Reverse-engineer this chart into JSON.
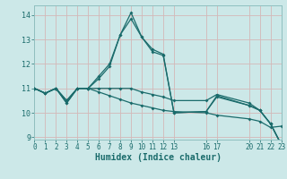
{
  "xlabel": "Humidex (Indice chaleur)",
  "bg_color": "#cce8e8",
  "grid_color": "#d4b8b8",
  "line_color": "#1a6b6b",
  "spine_color": "#8fbfbf",
  "xlim": [
    0,
    23
  ],
  "ylim": [
    8.9,
    14.4
  ],
  "yticks": [
    9,
    10,
    11,
    12,
    13,
    14
  ],
  "xticks": [
    0,
    1,
    2,
    3,
    4,
    5,
    6,
    7,
    8,
    9,
    10,
    11,
    12,
    13,
    16,
    17,
    20,
    21,
    22,
    23
  ],
  "series_x": [
    0,
    1,
    2,
    3,
    4,
    5,
    6,
    7,
    8,
    9,
    10,
    11,
    12,
    13,
    16,
    17,
    20,
    21,
    22,
    23
  ],
  "series": [
    [
      11.0,
      10.8,
      11.0,
      10.4,
      11.0,
      11.0,
      11.5,
      12.0,
      13.2,
      14.1,
      13.1,
      12.6,
      12.4,
      10.0,
      10.05,
      10.7,
      10.3,
      10.1,
      9.55,
      8.7
    ],
    [
      11.0,
      10.8,
      11.0,
      10.4,
      11.0,
      11.0,
      11.4,
      11.9,
      13.2,
      13.85,
      13.1,
      12.5,
      12.35,
      10.0,
      10.05,
      10.65,
      10.3,
      10.1,
      9.55,
      8.7
    ],
    [
      11.0,
      10.8,
      11.0,
      10.5,
      11.0,
      11.0,
      11.0,
      11.0,
      11.0,
      11.0,
      10.85,
      10.75,
      10.65,
      10.5,
      10.5,
      10.75,
      10.4,
      10.1,
      9.55,
      8.7
    ],
    [
      11.0,
      10.8,
      11.0,
      10.5,
      11.0,
      11.0,
      10.85,
      10.7,
      10.55,
      10.4,
      10.3,
      10.2,
      10.1,
      10.05,
      10.0,
      9.9,
      9.75,
      9.65,
      9.4,
      9.45
    ]
  ]
}
